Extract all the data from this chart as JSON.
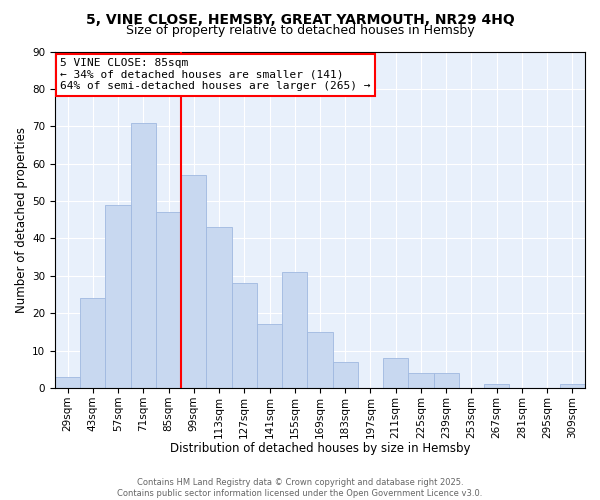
{
  "title_line1": "5, VINE CLOSE, HEMSBY, GREAT YARMOUTH, NR29 4HQ",
  "title_line2": "Size of property relative to detached houses in Hemsby",
  "xlabel": "Distribution of detached houses by size in Hemsby",
  "ylabel": "Number of detached properties",
  "bar_labels": [
    "29sqm",
    "43sqm",
    "57sqm",
    "71sqm",
    "85sqm",
    "99sqm",
    "113sqm",
    "127sqm",
    "141sqm",
    "155sqm",
    "169sqm",
    "183sqm",
    "197sqm",
    "211sqm",
    "225sqm",
    "239sqm",
    "253sqm",
    "267sqm",
    "281sqm",
    "295sqm",
    "309sqm"
  ],
  "bar_values": [
    3,
    24,
    49,
    71,
    47,
    57,
    43,
    28,
    17,
    31,
    15,
    7,
    0,
    8,
    4,
    4,
    0,
    1,
    0,
    0,
    1
  ],
  "bar_color": "#c8d8f0",
  "bar_edge_color": "#a0b8e0",
  "vline_x_index": 4,
  "vline_color": "red",
  "annotation_title": "5 VINE CLOSE: 85sqm",
  "annotation_line1": "← 34% of detached houses are smaller (141)",
  "annotation_line2": "64% of semi-detached houses are larger (265) →",
  "ylim": [
    0,
    90
  ],
  "yticks": [
    0,
    10,
    20,
    30,
    40,
    50,
    60,
    70,
    80,
    90
  ],
  "bg_color": "#e8f0fb",
  "footer_line1": "Contains HM Land Registry data © Crown copyright and database right 2025.",
  "footer_line2": "Contains public sector information licensed under the Open Government Licence v3.0.",
  "title_fontsize": 10,
  "subtitle_fontsize": 9,
  "axis_label_fontsize": 8.5,
  "tick_fontsize": 7.5,
  "annotation_fontsize": 8
}
